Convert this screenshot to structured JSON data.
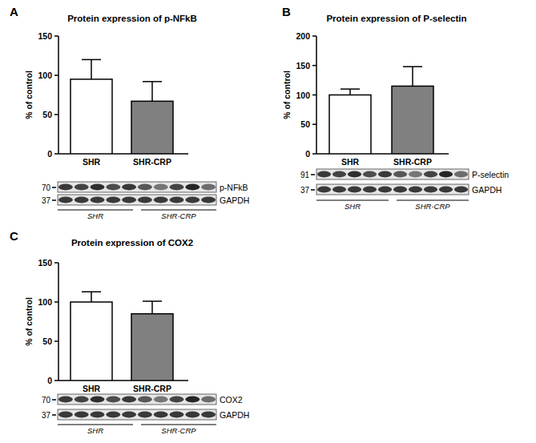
{
  "chart_data": [
    {
      "type": "bar",
      "panel": "A",
      "title": "Protein expression of p-NFkB",
      "ylabel": "% of control",
      "categories": [
        "SHR",
        "SHR-CRP"
      ],
      "values": [
        95,
        67
      ],
      "errors": [
        25,
        25
      ],
      "colors": [
        "#ffffff",
        "#808080"
      ],
      "ylim": [
        0,
        150
      ],
      "yticks": [
        0,
        50,
        100,
        150
      ],
      "blot": {
        "markers": [
          70,
          37
        ],
        "bands": [
          "p-NFkB",
          "GAPDH"
        ],
        "groups": [
          "SHR",
          "SHR-CRP"
        ]
      }
    },
    {
      "type": "bar",
      "panel": "B",
      "title": "Protein expression of P-selectin",
      "ylabel": "% of control",
      "categories": [
        "SHR",
        "SHR-CRP"
      ],
      "values": [
        100,
        115
      ],
      "errors": [
        10,
        33
      ],
      "colors": [
        "#ffffff",
        "#808080"
      ],
      "ylim": [
        0,
        200
      ],
      "yticks": [
        0,
        50,
        100,
        150,
        200
      ],
      "blot": {
        "markers": [
          91,
          37
        ],
        "bands": [
          "P-selectin",
          "GAPDH"
        ],
        "groups": [
          "SHR",
          "SHR-CRP"
        ]
      }
    },
    {
      "type": "bar",
      "panel": "C",
      "title": "Protein expression of COX2",
      "ylabel": "% of control",
      "categories": [
        "SHR",
        "SHR-CRP"
      ],
      "values": [
        100,
        85
      ],
      "errors": [
        13,
        16
      ],
      "colors": [
        "#ffffff",
        "#808080"
      ],
      "ylim": [
        0,
        150
      ],
      "yticks": [
        0,
        50,
        100,
        150
      ],
      "blot": {
        "markers": [
          70,
          37
        ],
        "bands": [
          "COX2",
          "GAPDH"
        ],
        "groups": [
          "SHR",
          "SHR-CRP"
        ]
      }
    }
  ]
}
